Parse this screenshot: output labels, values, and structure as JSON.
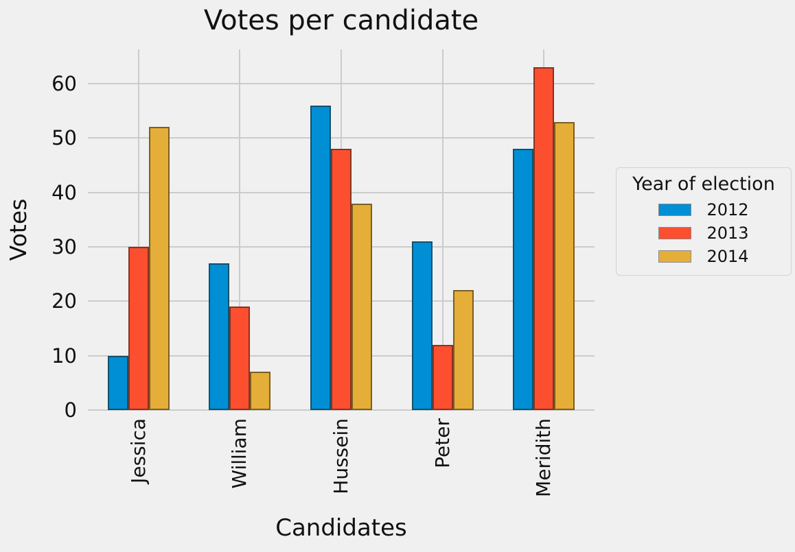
{
  "figure": {
    "background": "#f0f0f0",
    "grid_color": "#cbcbcb",
    "text_color": "#1a1a1a",
    "bar_edge_color": "rgba(35,30,20,0.55)"
  },
  "chart_data": {
    "type": "bar",
    "title": "Votes per candidate",
    "xlabel": "Candidates",
    "ylabel": "Votes",
    "categories": [
      "Jessica",
      "William",
      "Hussein",
      "Peter",
      "Meridith"
    ],
    "series": [
      {
        "name": "2012",
        "color": "#008fd5",
        "values": [
          10,
          27,
          56,
          31,
          48
        ]
      },
      {
        "name": "2013",
        "color": "#fc4f30",
        "values": [
          30,
          19,
          48,
          12,
          63
        ]
      },
      {
        "name": "2014",
        "color": "#e5ae38",
        "values": [
          52,
          7,
          38,
          22,
          53
        ]
      }
    ],
    "yticks": [
      0,
      10,
      20,
      30,
      40,
      50,
      60
    ],
    "ylim": [
      0,
      66.3
    ],
    "grid": true,
    "legend_title": "Year of election",
    "legend_position": "right"
  }
}
